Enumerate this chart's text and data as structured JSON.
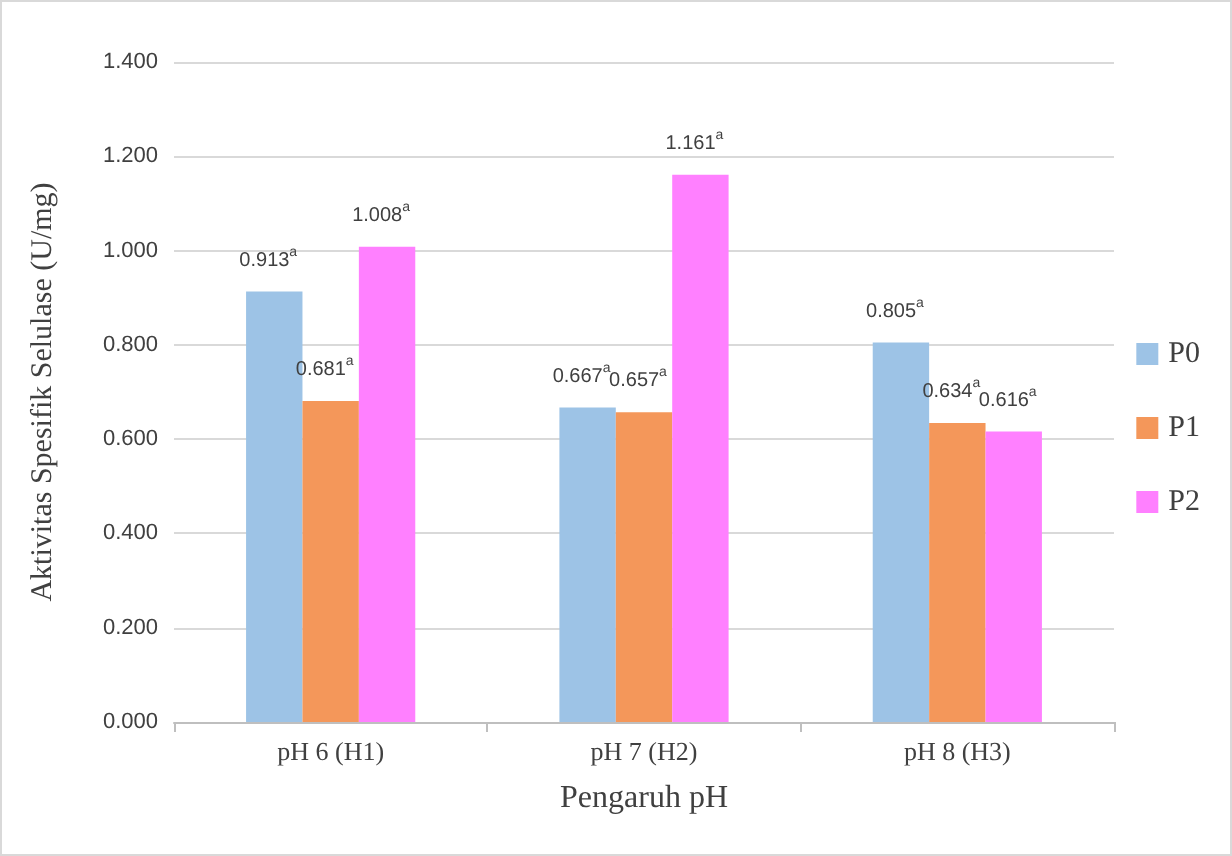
{
  "chart_data": {
    "type": "bar",
    "xlabel": "Pengaruh pH",
    "ylabel": "Aktivitas Spesifik Selulase (U/mg)",
    "categories": [
      "pH 6 (H1)",
      "pH 7 (H2)",
      "pH 8 (H3)"
    ],
    "series": [
      {
        "name": "P0",
        "color": "#9dc3e6",
        "values": [
          0.913,
          0.667,
          0.805
        ],
        "value_labels": [
          "0.913$^{a}$",
          "0.667$^{a}$",
          "0.805$^{a}$"
        ]
      },
      {
        "name": "P1",
        "color": "#f4975a",
        "values": [
          0.681,
          0.657,
          0.634
        ],
        "value_labels": [
          "0.681$^{a}$",
          "0.657$^{a}$",
          "0.634$^{a}$"
        ]
      },
      {
        "name": "P2",
        "color": "#ff80ff",
        "values": [
          1.008,
          1.161,
          0.616
        ],
        "value_labels": [
          "1.008$^{a}$",
          "1.161$^{a}$",
          "0.616$^{a}$"
        ]
      }
    ],
    "ylim": [
      0,
      1.4
    ],
    "yticks": [
      {
        "value": 0,
        "label": "0.000"
      },
      {
        "value": 0.2,
        "label": "0.200"
      },
      {
        "value": 0.4,
        "label": "0.400"
      },
      {
        "value": 0.6,
        "label": "0.600"
      },
      {
        "value": 0.8,
        "label": "0.800"
      },
      {
        "value": 1.0,
        "label": "1.000"
      },
      {
        "value": 1.2,
        "label": "1.200"
      },
      {
        "value": 1.4,
        "label": "1.400"
      }
    ],
    "grid": "y",
    "legend": "right"
  }
}
